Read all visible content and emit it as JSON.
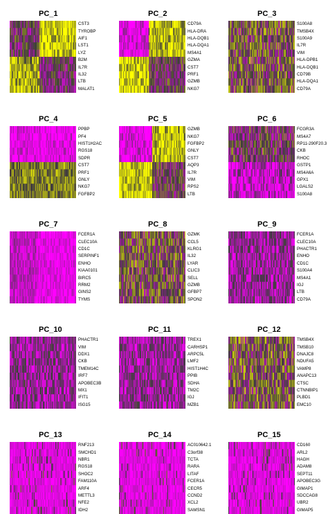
{
  "colors": {
    "low": "#FF00FF",
    "mid": "#3B3B3B",
    "high": "#FFFF00"
  },
  "chart_data": [
    {
      "type": "heatmap",
      "title": "PC_1",
      "genes": [
        "CST3",
        "TYROBP",
        "AIF1",
        "LST1",
        "LYZ",
        "B2M",
        "IL7R",
        "IL32",
        "LTB",
        "MALAT1"
      ],
      "pattern": "split-left-dark-top",
      "split": 0.45
    },
    {
      "type": "heatmap",
      "title": "PC_2",
      "genes": [
        "CD79A",
        "HLA-DRA",
        "HLA-DQB1",
        "HLA-DQA1",
        "MS4A1",
        "GZMA",
        "CST7",
        "PRF1",
        "GZMB",
        "NKG7"
      ],
      "pattern": "split-right-yellow-top",
      "split": 0.45
    },
    {
      "type": "heatmap",
      "title": "PC_3",
      "genes": [
        "S100A8",
        "TMSB4X",
        "S100A9",
        "IL7R",
        "VIM",
        "HLA-DPB1",
        "HLA-DQB1",
        "CD79B",
        "HLA-DQA1",
        "CD79A"
      ],
      "pattern": "dark-mixed",
      "split": 0.5
    },
    {
      "type": "heatmap",
      "title": "PC_4",
      "genes": [
        "PPBP",
        "PF4",
        "HIST1H2AC",
        "RGS18",
        "SDPR",
        "CST7",
        "PRF1",
        "GNLY",
        "NKG7",
        "FGFBP2"
      ],
      "pattern": "magenta-lower-yellow",
      "split": 0.5
    },
    {
      "type": "heatmap",
      "title": "PC_5",
      "genes": [
        "GZMB",
        "NKG7",
        "FGFBP2",
        "GNLY",
        "CST7",
        "AQP3",
        "IL7R",
        "VIM",
        "RPS2",
        "LTB"
      ],
      "pattern": "split-right-yellow-top",
      "split": 0.5
    },
    {
      "type": "heatmap",
      "title": "PC_6",
      "genes": [
        "FCGR3A",
        "MS4A7",
        "RP11-290F20.3",
        "CKB",
        "RHOC",
        "GSTP1",
        "MS4A6A",
        "GPX1",
        "LGALS2",
        "S100A8"
      ],
      "pattern": "magenta-top-yellow",
      "split": 0.5
    },
    {
      "type": "heatmap",
      "title": "PC_7",
      "genes": [
        "FCER1A",
        "CLEC10A",
        "CD1C",
        "SERPINF1",
        "ENHO",
        "KIAA0101",
        "BIRC5",
        "RRM2",
        "GINS2",
        "TYMS"
      ],
      "pattern": "magenta-left-yellow",
      "split": 0.5
    },
    {
      "type": "heatmap",
      "title": "PC_8",
      "genes": [
        "GZMK",
        "CCL5",
        "KLRG1",
        "IL32",
        "LYAR",
        "CLIC3",
        "SELL",
        "GZMB",
        "GFBP7",
        "SPON2"
      ],
      "pattern": "dark-mixed",
      "split": 0.5
    },
    {
      "type": "heatmap",
      "title": "PC_9",
      "genes": [
        "FCER1A",
        "CLEC10A",
        "PHACTR1",
        "ENHO",
        "CD1C",
        "S100A4",
        "MS4A1",
        "IGJ",
        "LTB",
        "CD79A"
      ],
      "pattern": "magenta-dark",
      "split": 0.5
    },
    {
      "type": "heatmap",
      "title": "PC_10",
      "genes": [
        "PHACTR1",
        "VIM",
        "DDX1",
        "CKB",
        "TMEM14C",
        "IRF7",
        "APOBEC3B",
        "MX1",
        "IFIT1",
        "ISG15"
      ],
      "pattern": "magenta-dark",
      "split": 0.5
    },
    {
      "type": "heatmap",
      "title": "PC_11",
      "genes": [
        "TREX1",
        "CARHSP1",
        "ARPC5L",
        "LMF2",
        "HIST1H4C",
        "PPIB",
        "SDHA",
        "TM2C",
        "IGJ",
        "MZB1"
      ],
      "pattern": "magenta-dark",
      "split": 0.5
    },
    {
      "type": "heatmap",
      "title": "PC_12",
      "genes": [
        "TMSB4X",
        "TMSB10",
        "DNAJC8",
        "NDUFA5",
        "VAMP8",
        "ANAPC13",
        "CTSC",
        "CTNNBIP1",
        "PLBD1",
        "EMC10"
      ],
      "pattern": "dark-mixed",
      "split": 0.5
    },
    {
      "type": "heatmap",
      "title": "PC_13",
      "genes": [
        "RNF213",
        "SMCHD1",
        "NBR1",
        "RGS18",
        "SHOC2",
        "FAM110A",
        "ARF4",
        "METTL3",
        "NFE2",
        "IDH2"
      ],
      "pattern": "magenta-sparse",
      "split": 0.5
    },
    {
      "type": "heatmap",
      "title": "PC_14",
      "genes": [
        "AC010642.1",
        "C3orf38",
        "TCTA",
        "RARA",
        "LITAF",
        "FCER1A",
        "CECR5",
        "CCND2",
        "XCL2",
        "SAMSN1"
      ],
      "pattern": "magenta-sparse",
      "split": 0.5
    },
    {
      "type": "heatmap",
      "title": "PC_15",
      "genes": [
        "CD160",
        "ARL2",
        "HAGH",
        "ADAM8",
        "SEPT11",
        "APOBEC3G",
        "GIMAP1",
        "SDCCAG8",
        "UBR2",
        "GIMAP5"
      ],
      "pattern": "magenta-sparse",
      "split": 0.5
    }
  ]
}
